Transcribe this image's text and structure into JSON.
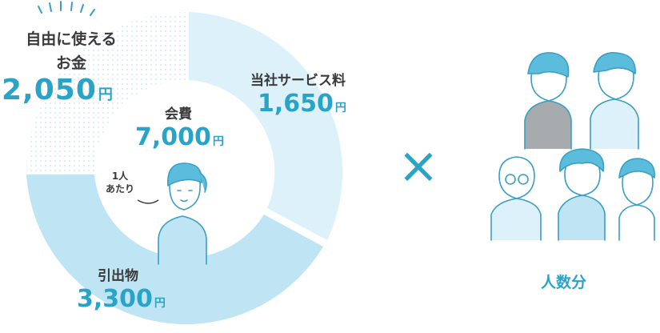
{
  "free_money": {
    "title_line1": "自由に使える",
    "title_line2": "お金",
    "amount": "2,050",
    "unit": "円"
  },
  "service_fee": {
    "title": "当社サービス料",
    "amount": "1,650",
    "unit": "円"
  },
  "membership_fee": {
    "title": "会費",
    "amount": "7,000",
    "unit": "円"
  },
  "gifts": {
    "title": "引出物",
    "amount": "3,300",
    "unit": "円"
  },
  "per_person": {
    "line1": "1人",
    "line2": "あたり"
  },
  "times_sign": "×",
  "people_label": "人数分",
  "colors": {
    "accent": "#2aa3c8",
    "ring_main": "#bfe4f3",
    "ring_light": "#dcf1f9",
    "ink": "#3a3a3a"
  }
}
